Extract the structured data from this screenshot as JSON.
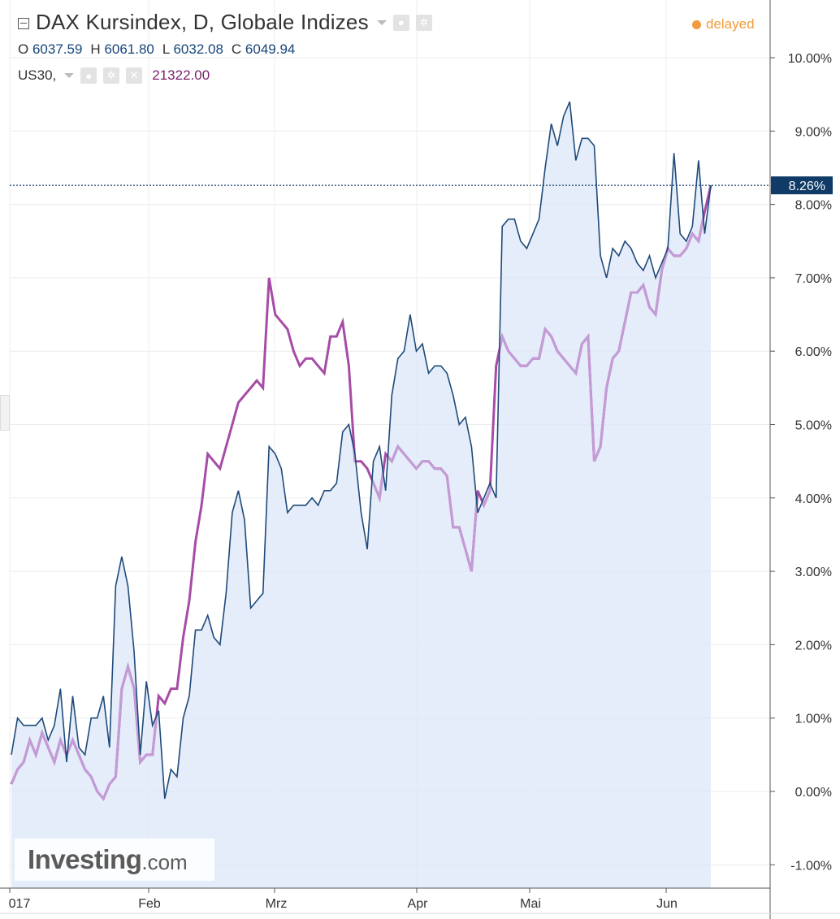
{
  "header": {
    "title": "DAX Kursindex, D, Globale Indizes",
    "ohlc": [
      {
        "key": "O",
        "value": "6037.59"
      },
      {
        "key": "H",
        "value": "6061.80"
      },
      {
        "key": "L",
        "value": "6032.08"
      },
      {
        "key": "C",
        "value": "6049.94"
      }
    ],
    "compare_symbol": "US30,",
    "compare_value": "21322.00",
    "status": "delayed"
  },
  "icons": {
    "collapse": "collapse-icon",
    "dropdown": "chevron-down-icon",
    "visibility": "eye-icon",
    "settings": "gear-icon",
    "remove": "close-icon"
  },
  "watermark": {
    "brand": "Investing",
    "domain": ".com"
  },
  "colors": {
    "main_line": "#1f4a7a",
    "main_fill": "#dde9f7",
    "compare_line": "#a64ca6",
    "compare_line_faded": "#c49bd6",
    "last_value_badge": "#0f3b66",
    "delayed": "#f39a3c",
    "grid": "#ececec"
  },
  "chart_data": {
    "type": "line",
    "x_ticks": [
      "017",
      "Feb",
      "Mrz",
      "Apr",
      "Mai",
      "Jun"
    ],
    "y_ticks": [
      "10.00%",
      "9.00%",
      "8.00%",
      "7.00%",
      "6.00%",
      "5.00%",
      "4.00%",
      "3.00%",
      "2.00%",
      "1.00%",
      "0.00%",
      "-1.00%"
    ],
    "ylim": [
      -1.2,
      10.4
    ],
    "last_value_label": "8.26%",
    "last_value": 8.26,
    "grid": true,
    "series": [
      {
        "name": "DAX Kursindex",
        "area": true,
        "values": [
          0.5,
          1.0,
          0.9,
          0.9,
          0.9,
          1.0,
          0.7,
          0.9,
          1.4,
          0.4,
          1.3,
          0.6,
          0.5,
          1.0,
          1.0,
          1.3,
          0.6,
          2.8,
          3.2,
          2.8,
          1.9,
          0.5,
          1.5,
          0.9,
          1.1,
          -0.1,
          0.3,
          0.2,
          1.0,
          1.3,
          2.2,
          2.2,
          2.4,
          2.1,
          2.0,
          2.7,
          3.8,
          4.1,
          3.7,
          2.5,
          2.6,
          2.7,
          4.7,
          4.6,
          4.4,
          3.8,
          3.9,
          3.9,
          3.9,
          4.0,
          3.9,
          4.1,
          4.1,
          4.2,
          4.9,
          5.0,
          4.6,
          3.8,
          3.3,
          4.5,
          4.7,
          4.1,
          5.4,
          5.9,
          6.0,
          6.5,
          6.0,
          6.1,
          5.7,
          5.8,
          5.8,
          5.7,
          5.4,
          5.0,
          5.1,
          4.7,
          3.8,
          4.0,
          4.2,
          4.0,
          7.7,
          7.8,
          7.8,
          7.5,
          7.4,
          7.6,
          7.8,
          8.5,
          9.1,
          8.8,
          9.2,
          9.4,
          8.6,
          8.9,
          8.9,
          8.8,
          7.3,
          7.0,
          7.4,
          7.3,
          7.5,
          7.4,
          7.2,
          7.1,
          7.3,
          7.0,
          7.2,
          7.4,
          8.7,
          7.6,
          7.5,
          7.7,
          8.6,
          7.6,
          8.26
        ]
      },
      {
        "name": "US30",
        "values": [
          0.1,
          0.3,
          0.4,
          0.7,
          0.5,
          0.8,
          0.6,
          0.4,
          0.7,
          0.5,
          0.7,
          0.5,
          0.3,
          0.2,
          0.0,
          -0.1,
          0.1,
          0.2,
          1.4,
          1.7,
          1.4,
          0.4,
          0.5,
          0.5,
          1.3,
          1.2,
          1.4,
          1.4,
          2.1,
          2.6,
          3.4,
          3.9,
          4.6,
          4.5,
          4.4,
          4.7,
          5.0,
          5.3,
          5.4,
          5.5,
          5.6,
          5.5,
          7.0,
          6.5,
          6.4,
          6.3,
          6.0,
          5.8,
          5.9,
          5.9,
          5.8,
          5.7,
          6.2,
          6.2,
          6.4,
          5.8,
          4.5,
          4.5,
          4.4,
          4.2,
          4.0,
          4.6,
          4.5,
          4.7,
          4.6,
          4.5,
          4.4,
          4.5,
          4.5,
          4.4,
          4.4,
          4.3,
          3.6,
          3.6,
          3.3,
          3.0,
          4.1,
          3.9,
          4.1,
          5.8,
          6.2,
          6.0,
          5.9,
          5.8,
          5.8,
          5.9,
          5.9,
          6.3,
          6.2,
          6.0,
          5.9,
          5.8,
          5.7,
          6.1,
          6.2,
          4.5,
          4.7,
          5.5,
          5.9,
          6.0,
          6.4,
          6.8,
          6.8,
          6.9,
          6.6,
          6.5,
          7.1,
          7.4,
          7.3,
          7.3,
          7.4,
          7.6,
          7.5,
          7.9,
          8.26
        ]
      }
    ]
  }
}
